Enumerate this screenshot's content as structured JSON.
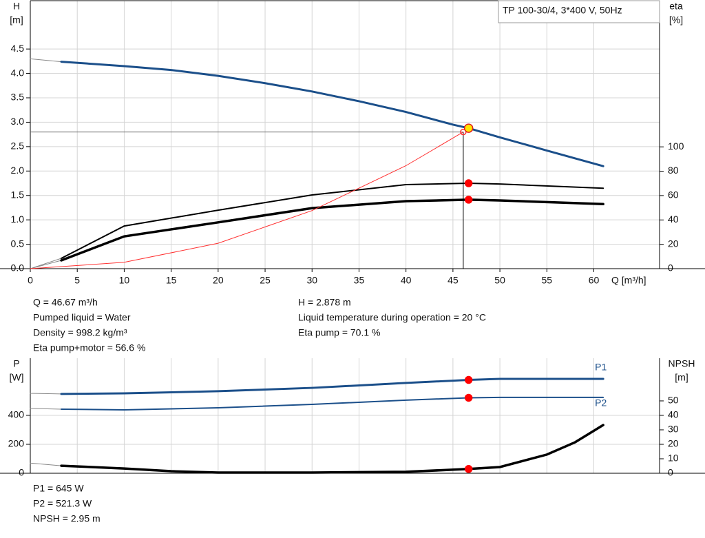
{
  "chart_data": [
    {
      "type": "line",
      "title": "TP 100-30/4, 3*400 V, 50Hz",
      "ylabel": "H",
      "yunit": "[m]",
      "y2label": "eta",
      "y2unit": "[%]",
      "xlabel": "Q [m³/h]",
      "xlim": [
        0,
        67
      ],
      "xticks": [
        0,
        5,
        10,
        15,
        20,
        25,
        30,
        35,
        40,
        45,
        50,
        55,
        60
      ],
      "ylim": [
        0,
        5.49
      ],
      "yticks": [
        {
          "value": 0,
          "label": "0.0"
        },
        0.5,
        {
          "value": 1,
          "label": "1.0"
        },
        1.5,
        {
          "value": 2,
          "label": "2.0"
        },
        2.5,
        {
          "value": 3,
          "label": "3.0"
        },
        3.5,
        {
          "value": 4,
          "label": "4.0"
        },
        4.5
      ],
      "y2lim": [
        0,
        220
      ],
      "y2ticks": [
        0,
        20,
        40,
        60,
        80,
        100
      ],
      "grid": true,
      "series": [
        {
          "color": "#888888",
          "width": 1,
          "x": [
            0,
            3.3
          ],
          "values": [
            4.3,
            4.24
          ]
        },
        {
          "color": "#1b4f8a",
          "width": 3,
          "x": [
            3.3,
            10,
            15,
            20,
            25,
            30,
            35,
            40,
            45,
            46.67,
            50,
            55,
            61
          ],
          "values": [
            4.24,
            4.15,
            4.07,
            3.95,
            3.8,
            3.63,
            3.43,
            3.21,
            2.95,
            2.878,
            2.69,
            2.42,
            2.1
          ]
        },
        {
          "color": "#888888",
          "width": 1,
          "axis": "y2",
          "x": [
            0,
            3.3
          ],
          "values": [
            0,
            8.5
          ]
        },
        {
          "color": "#888888",
          "width": 1,
          "axis": "y2",
          "x": [
            0,
            3.3
          ],
          "values": [
            0,
            6.8
          ]
        },
        {
          "color": "#000000",
          "width": 2,
          "axis": "y2",
          "x": [
            3.3,
            10,
            20,
            30,
            40,
            46.67,
            50,
            61
          ],
          "values": [
            8.5,
            35,
            48,
            60.5,
            69,
            70.1,
            69.5,
            66
          ]
        },
        {
          "color": "#000000",
          "width": 3.5,
          "axis": "y2",
          "x": [
            3.3,
            10,
            20,
            30,
            40,
            46.67,
            50,
            61
          ],
          "values": [
            6.8,
            26.5,
            38,
            49.7,
            55.4,
            56.6,
            56,
            53
          ]
        },
        {
          "color": "#ff3030",
          "width": 1,
          "x": [
            0,
            10,
            20,
            30,
            40,
            46.1
          ],
          "values": [
            0,
            0.13,
            0.52,
            1.19,
            2.11,
            2.8
          ]
        }
      ],
      "points": [
        {
          "x": 46.1,
          "y": 2.8,
          "color": "none",
          "stroke": "#ff3030",
          "r": 4
        },
        {
          "x": 46.67,
          "y": 2.878,
          "color": "#ffe600",
          "stroke": "#e02020",
          "r": 6
        },
        {
          "x": 46.67,
          "y": 70.1,
          "axis": "y2",
          "color": "#ff0000",
          "stroke": "#ff0000",
          "r": 5
        },
        {
          "x": 46.67,
          "y": 56.6,
          "axis": "y2",
          "color": "#ff0000",
          "stroke": "#ff0000",
          "r": 5
        }
      ],
      "notes": [
        [
          "Q = 46.67 m³/h",
          "Pumped liquid = Water",
          "Density = 998.2 kg/m³",
          "Eta pump+motor = 56.6 %"
        ],
        [
          "H = 2.878 m",
          "Liquid temperature during operation = 20 °C",
          "Eta pump = 70.1 %"
        ]
      ]
    },
    {
      "type": "line",
      "ylabel": "P",
      "yunit": "[W]",
      "y2label": "NPSH",
      "y2unit": "[m]",
      "xlim": [
        0,
        67
      ],
      "ylim": [
        0,
        795
      ],
      "yticks": [
        0,
        200,
        400
      ],
      "y2lim": [
        0,
        79.5
      ],
      "y2ticks": [
        0,
        10,
        20,
        30,
        40,
        50
      ],
      "grid": true,
      "series": [
        {
          "color": "#888888",
          "width": 1,
          "x": [
            0,
            3.3
          ],
          "values": [
            552,
            548
          ]
        },
        {
          "name": "P1",
          "color": "#1b4f8a",
          "width": 3,
          "x": [
            3.3,
            10,
            20,
            30,
            40,
            46.67,
            50,
            61
          ],
          "values": [
            548,
            552,
            567,
            590,
            624,
            645,
            652,
            652
          ]
        },
        {
          "color": "#888888",
          "width": 1,
          "x": [
            0,
            3.3
          ],
          "values": [
            448,
            443
          ]
        },
        {
          "name": "P2",
          "color": "#1b4f8a",
          "width": 2,
          "x": [
            3.3,
            10,
            20,
            30,
            40,
            46.67,
            50,
            61
          ],
          "values": [
            443,
            438,
            452,
            476,
            505,
            521.3,
            524,
            524
          ]
        },
        {
          "color": "#888888",
          "width": 1,
          "axis": "y2",
          "x": [
            0,
            3.3
          ],
          "values": [
            7,
            5.2
          ]
        },
        {
          "color": "#000000",
          "width": 3.5,
          "axis": "y2",
          "x": [
            3.3,
            10,
            15,
            20,
            30,
            40,
            46.67,
            50,
            55,
            58,
            61
          ],
          "values": [
            5.2,
            3.3,
            1.4,
            0.5,
            0.5,
            1,
            2.95,
            4.3,
            12.9,
            21.4,
            33.3
          ]
        }
      ],
      "points": [
        {
          "x": 46.67,
          "y": 645,
          "color": "#ff0000",
          "stroke": "#ff0000",
          "r": 5
        },
        {
          "x": 46.67,
          "y": 521.3,
          "color": "#ff0000",
          "stroke": "#ff0000",
          "r": 5
        },
        {
          "x": 46.67,
          "y": 2.95,
          "axis": "y2",
          "color": "#ff0000",
          "stroke": "#ff0000",
          "r": 5
        }
      ],
      "notes": [
        [
          "P1 = 645 W",
          "P2 = 521.3 W",
          "NPSH = 2.95 m"
        ]
      ]
    }
  ]
}
